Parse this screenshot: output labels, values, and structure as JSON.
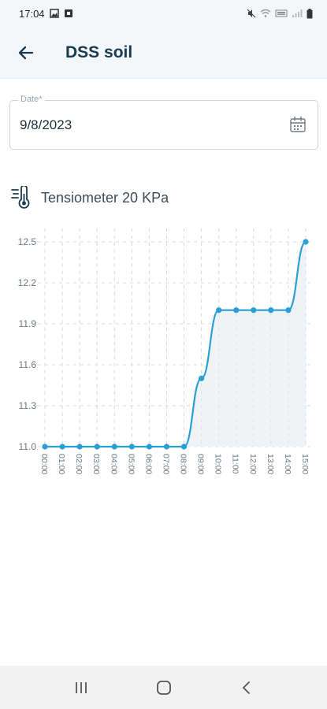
{
  "status_bar": {
    "time": "17:04",
    "icons": [
      "image-icon",
      "notification-icon",
      "mute-icon",
      "wifi-icon",
      "volte-icon",
      "signal-icon",
      "battery-icon"
    ]
  },
  "header": {
    "title": "DSS soil",
    "back_icon": "arrow-left-icon"
  },
  "date_field": {
    "label": "Date*",
    "value": "9/8/2023",
    "icon": "calendar-icon"
  },
  "sensor": {
    "title": "Tensiometer 20 KPa",
    "icon": "thermometer-icon"
  },
  "colors": {
    "line": "#2a9fd6",
    "fill": "#eef2f5",
    "grid": "#d7dbde",
    "header_bg": "#f4f7f9"
  },
  "chart_data": {
    "type": "line",
    "x": [
      "00:00",
      "01:00",
      "02:00",
      "03:00",
      "04:00",
      "05:00",
      "06:00",
      "07:00",
      "08:00",
      "09:00",
      "10:00",
      "11:00",
      "12:00",
      "13:00",
      "14:00",
      "15:00"
    ],
    "series": [
      {
        "values": [
          11.0,
          11.0,
          11.0,
          11.0,
          11.0,
          11.0,
          11.0,
          11.0,
          11.0,
          11.5,
          12.0,
          12.0,
          12.0,
          12.0,
          12.0,
          12.5
        ]
      }
    ],
    "yticks": [
      "11.0",
      "11.3",
      "11.6",
      "11.9",
      "12.2",
      "12.5"
    ],
    "ylim": [
      11.0,
      12.5
    ],
    "grid": true
  },
  "nav_bar": {
    "recents_icon": "recents-icon",
    "home_icon": "home-icon",
    "back_icon": "back-chevron-icon"
  }
}
